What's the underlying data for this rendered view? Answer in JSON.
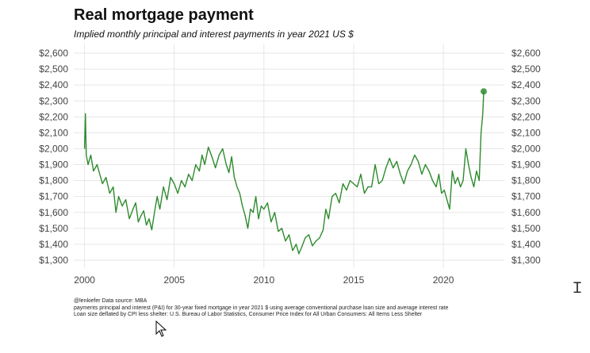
{
  "chart_data": {
    "type": "line",
    "title": "Real mortgage payment",
    "subtitle": "Implied monthly principal and interest payments in year 2021 US $",
    "xlabel": "",
    "ylabel": "",
    "x_ticks": [
      "2000",
      "2005",
      "2010",
      "2015",
      "2020"
    ],
    "y_ticks": [
      "$1,300",
      "$1,400",
      "$1,500",
      "$1,600",
      "$1,700",
      "$1,800",
      "$1,900",
      "$2,000",
      "$2,100",
      "$2,200",
      "$2,300",
      "$2,400",
      "$2,500",
      "$2,600"
    ],
    "xlim": [
      1999.4,
      2023.4
    ],
    "ylim": [
      1250,
      2660
    ],
    "grid": true,
    "line_color": "#2e8b2e",
    "series": [
      {
        "x": [
          2000.0,
          2000.05,
          2000.1,
          2000.2,
          2000.35,
          2000.5,
          2000.7,
          2000.85,
          2001.0,
          2001.2,
          2001.4,
          2001.6,
          2001.75,
          2001.9,
          2002.1,
          2002.3,
          2002.5,
          2002.7,
          2002.85,
          2003.0,
          2003.15,
          2003.3,
          2003.45,
          2003.6,
          2003.75,
          2003.9,
          2004.05,
          2004.2,
          2004.4,
          2004.6,
          2004.8,
          2005.0,
          2005.2,
          2005.4,
          2005.6,
          2005.8,
          2006.0,
          2006.2,
          2006.4,
          2006.55,
          2006.7,
          2006.9,
          2007.1,
          2007.3,
          2007.5,
          2007.7,
          2007.9,
          2008.05,
          2008.2,
          2008.35,
          2008.5,
          2008.65,
          2008.8,
          2008.95,
          2009.1,
          2009.25,
          2009.4,
          2009.55,
          2009.7,
          2009.85,
          2010.0,
          2010.2,
          2010.4,
          2010.6,
          2010.8,
          2011.0,
          2011.2,
          2011.4,
          2011.6,
          2011.8,
          2011.95,
          2012.1,
          2012.3,
          2012.5,
          2012.7,
          2012.9,
          2013.1,
          2013.3,
          2013.45,
          2013.6,
          2013.8,
          2014.0,
          2014.2,
          2014.4,
          2014.6,
          2014.8,
          2015.0,
          2015.2,
          2015.4,
          2015.6,
          2015.8,
          2016.0,
          2016.2,
          2016.4,
          2016.6,
          2016.8,
          2017.0,
          2017.2,
          2017.4,
          2017.6,
          2017.8,
          2018.0,
          2018.2,
          2018.4,
          2018.6,
          2018.8,
          2019.0,
          2019.2,
          2019.4,
          2019.6,
          2019.75,
          2019.9,
          2020.05,
          2020.2,
          2020.35,
          2020.5,
          2020.65,
          2020.8,
          2020.95,
          2021.1,
          2021.25,
          2021.4,
          2021.55,
          2021.7,
          2021.85,
          2022.0,
          2022.1,
          2022.2,
          2022.25
        ],
        "y": [
          2000,
          2220,
          1960,
          1900,
          1960,
          1860,
          1900,
          1840,
          1780,
          1820,
          1720,
          1760,
          1600,
          1700,
          1640,
          1680,
          1560,
          1620,
          1660,
          1540,
          1580,
          1610,
          1520,
          1560,
          1490,
          1600,
          1700,
          1620,
          1760,
          1680,
          1820,
          1780,
          1720,
          1800,
          1760,
          1840,
          1800,
          1900,
          1860,
          1960,
          1900,
          2010,
          1950,
          1880,
          1960,
          2000,
          1900,
          1850,
          1950,
          1820,
          1760,
          1720,
          1640,
          1580,
          1500,
          1620,
          1600,
          1700,
          1560,
          1640,
          1620,
          1660,
          1540,
          1600,
          1480,
          1500,
          1420,
          1460,
          1360,
          1400,
          1340,
          1380,
          1440,
          1460,
          1390,
          1420,
          1440,
          1490,
          1620,
          1560,
          1700,
          1720,
          1660,
          1780,
          1740,
          1800,
          1780,
          1760,
          1840,
          1720,
          1760,
          1760,
          1900,
          1780,
          1800,
          1880,
          1940,
          1880,
          1920,
          1840,
          1780,
          1860,
          1900,
          1960,
          1920,
          1840,
          1900,
          1860,
          1800,
          1760,
          1840,
          1720,
          1740,
          1680,
          1620,
          1860,
          1780,
          1820,
          1760,
          1800,
          2000,
          1900,
          1820,
          1760,
          1860,
          1800,
          2100,
          2220,
          2360
        ],
        "marker_last": true
      }
    ]
  },
  "caption": {
    "line1": "@lenkiefer Data source: MBA",
    "line2": "payments principal and interest (P&I) for 30-year fixed mortgage in year 2021 $ using average conventional purchase loan size and average interest rate",
    "line3": "Loan size deflated by CPI less shelter: U.S. Bureau of Labor Statistics, Consumer Price Index for All Urban Consumers: All Items Less Shelter"
  },
  "icons": {
    "text_cursor": "text-cursor-icon",
    "pointer": "mouse-pointer-icon"
  }
}
